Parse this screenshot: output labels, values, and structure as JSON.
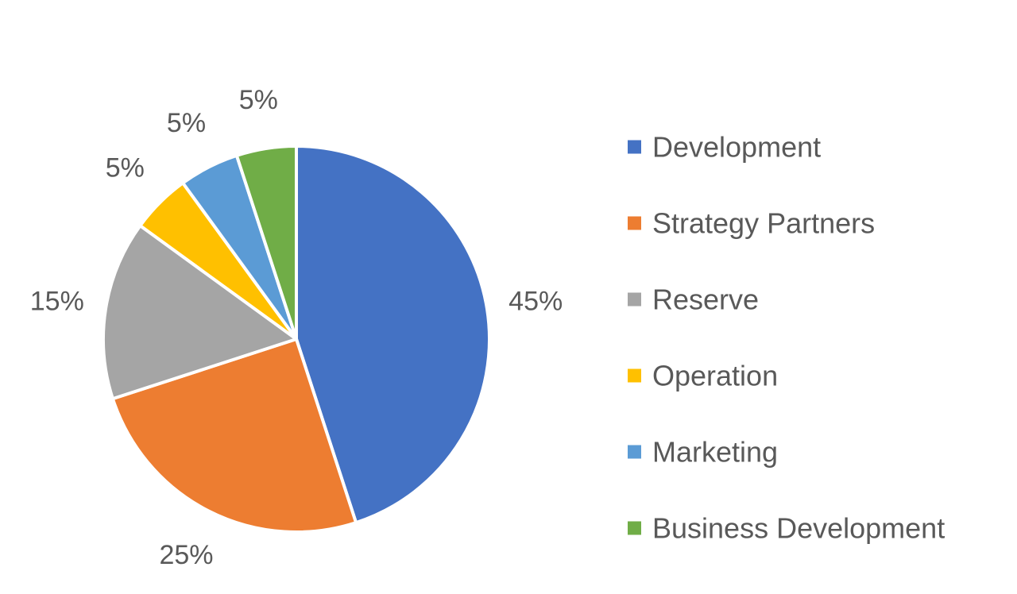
{
  "chart_data": {
    "type": "pie",
    "title": "",
    "legend_position": "right",
    "categories": [
      "Development",
      "Strategy Partners",
      "Reserve",
      "Operation",
      "Marketing",
      "Business Development"
    ],
    "values": [
      45,
      25,
      15,
      5,
      5,
      5
    ],
    "data_labels": [
      "45%",
      "25%",
      "15%",
      "5%",
      "5%",
      "5%"
    ],
    "colors": [
      "#4472C4",
      "#ED7D31",
      "#A5A5A5",
      "#FFC000",
      "#5B9BD5",
      "#70AD47"
    ],
    "slice_border_color": "#FFFFFF",
    "label_color": "#595959"
  }
}
